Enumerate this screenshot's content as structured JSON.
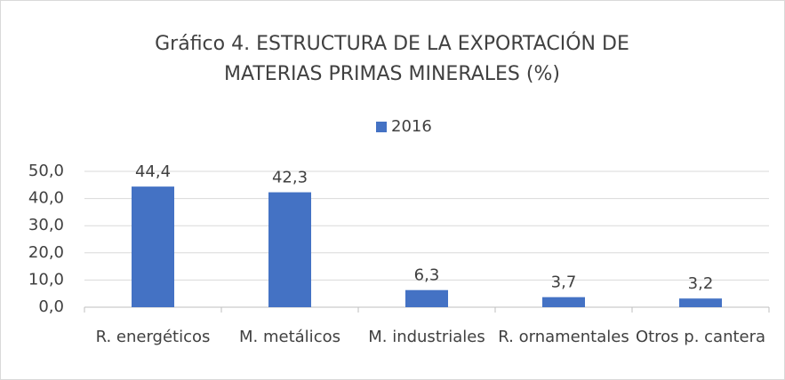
{
  "chart_data": {
    "type": "bar",
    "title": [
      "Gráfico 4.  ESTRUCTURA DE LA EXPORTACIÓN DE",
      "MATERIAS PRIMAS MINERALES (%)"
    ],
    "categories": [
      "R. energéticos",
      "M. metálicos",
      "M. industriales",
      "R. ornamentales",
      "Otros p. cantera"
    ],
    "series": [
      {
        "name": "2016",
        "color": "#4472c4",
        "values": [
          44.4,
          42.3,
          6.3,
          3.7,
          3.2
        ],
        "value_labels": [
          "44,4",
          "42,3",
          "6,3",
          "3,7",
          "3,2"
        ]
      }
    ],
    "ylim": [
      0,
      50
    ],
    "yticks": [
      {
        "value": 0,
        "label": "0,0"
      },
      {
        "value": 10,
        "label": "10,0"
      },
      {
        "value": 20,
        "label": "20,0"
      },
      {
        "value": 30,
        "label": "30,0"
      },
      {
        "value": 40,
        "label": "40,0"
      },
      {
        "value": 50,
        "label": "50,0"
      }
    ],
    "grid": true,
    "legend": "top"
  }
}
